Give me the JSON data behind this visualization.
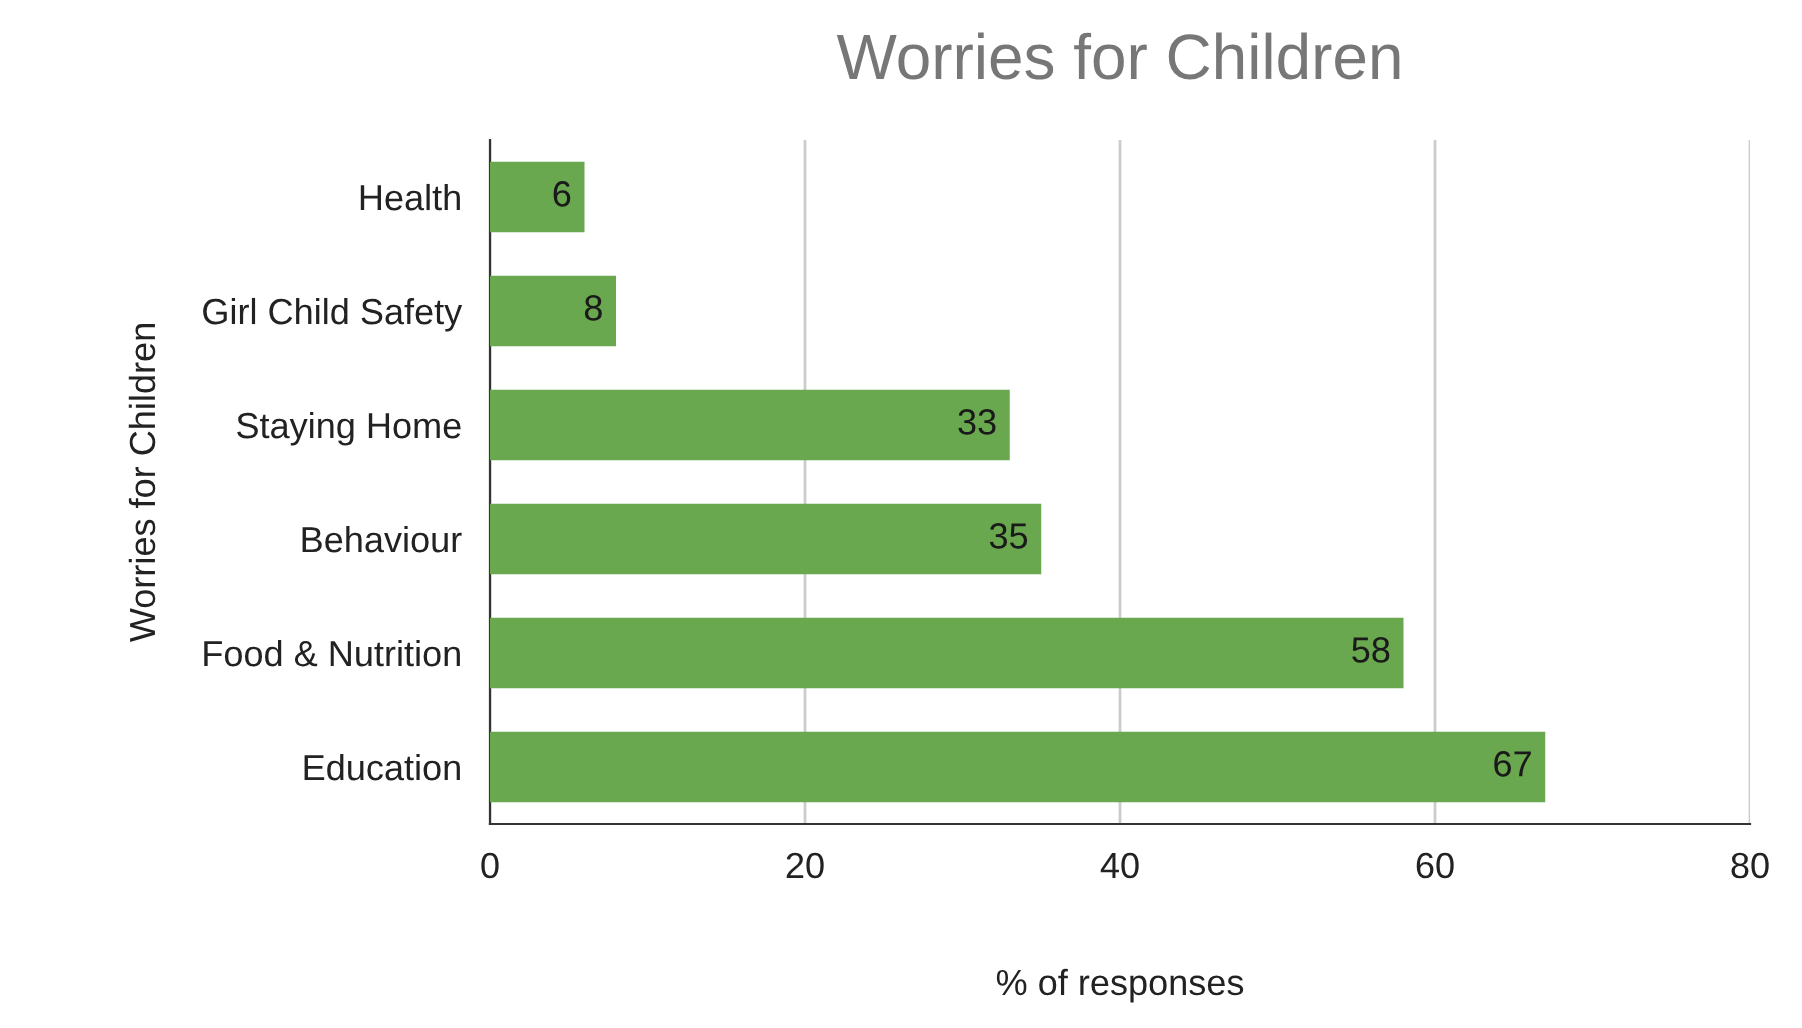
{
  "chart_data": {
    "type": "bar",
    "orientation": "horizontal",
    "title": "Worries for Children",
    "xlabel": "% of responses",
    "ylabel": "Worries for Children",
    "categories": [
      "Health",
      "Girl Child Safety",
      "Staying Home",
      "Behaviour",
      "Food & Nutrition",
      "Education"
    ],
    "values": [
      6,
      8,
      33,
      35,
      58,
      67
    ],
    "color": "#6aa84f",
    "xlim": [
      0,
      80
    ],
    "xticks": [
      0,
      20,
      40,
      60,
      80
    ],
    "grid": "x",
    "data_labels": true
  }
}
